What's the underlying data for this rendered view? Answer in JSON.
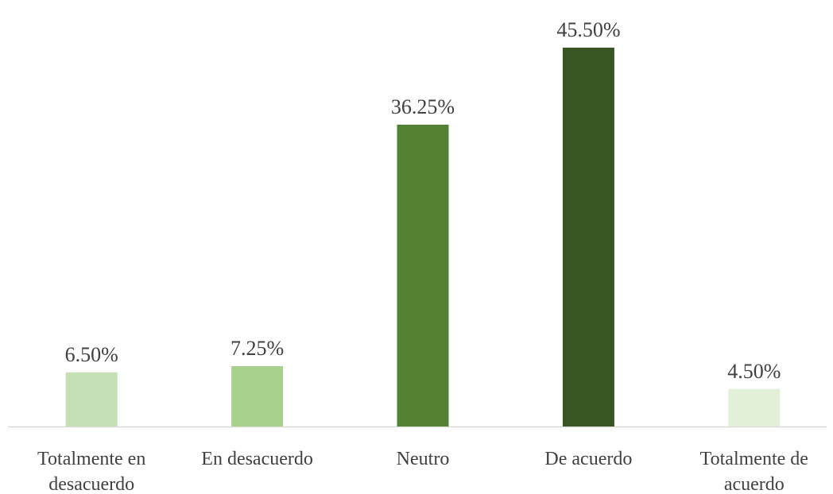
{
  "chart_data": {
    "type": "bar",
    "categories": [
      "Totalmente en desacuerdo",
      "En desacuerdo",
      "Neutro",
      "De acuerdo",
      "Totalmente de acuerdo"
    ],
    "values": [
      6.5,
      7.25,
      36.25,
      45.5,
      4.5
    ],
    "value_labels": [
      "6.50%",
      "7.25%",
      "36.25%",
      "45.50%",
      "4.50%"
    ],
    "colors": [
      "#c5e0b4",
      "#a9d18e",
      "#548235",
      "#375623",
      "#e2f0d9"
    ]
  }
}
